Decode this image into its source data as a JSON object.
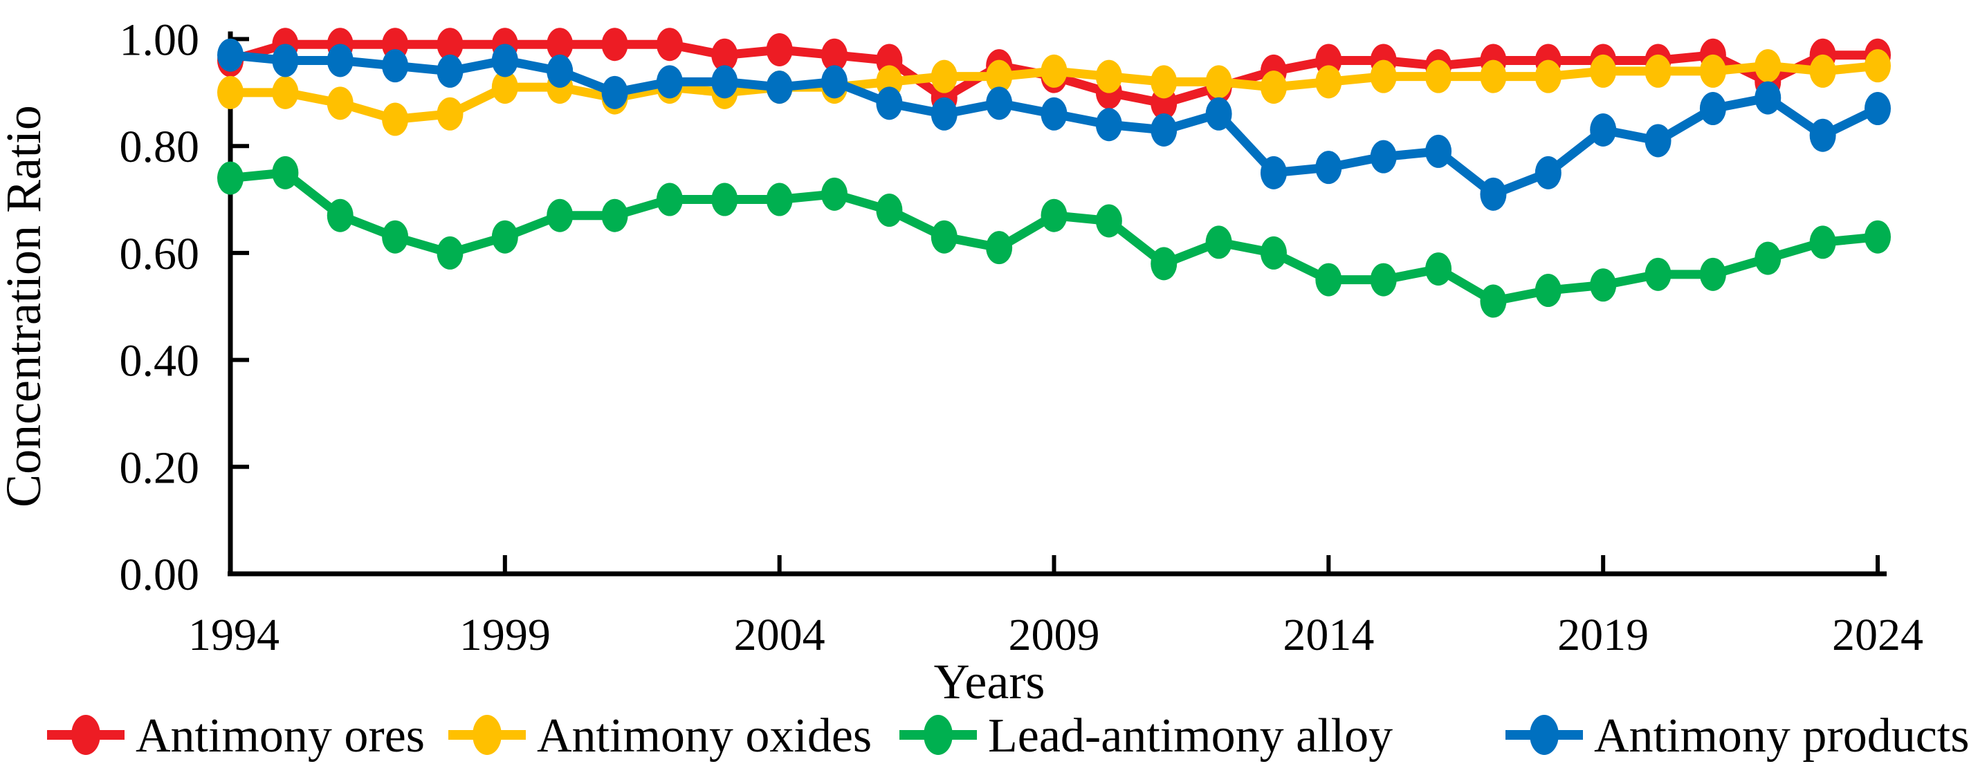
{
  "chart_data": {
    "type": "line",
    "title": "",
    "xlabel": "Years",
    "ylabel": "Concentration Ratio",
    "grid": false,
    "legend_position": "bottom",
    "ylim": [
      0.0,
      1.0
    ],
    "y_ticks": [
      {
        "label": "1.00",
        "value": 1.0
      },
      {
        "label": "0.80",
        "value": 0.8
      },
      {
        "label": "0.60",
        "value": 0.6
      },
      {
        "label": "0.40",
        "value": 0.4
      },
      {
        "label": "0.20",
        "value": 0.2
      },
      {
        "label": "0.00",
        "value": 0.0
      }
    ],
    "x_ticks": [
      1994,
      1999,
      2004,
      2009,
      2014,
      2019,
      2024
    ],
    "x": [
      1994,
      1995,
      1996,
      1997,
      1998,
      1999,
      2000,
      2001,
      2002,
      2003,
      2004,
      2005,
      2006,
      2007,
      2008,
      2009,
      2010,
      2011,
      2012,
      2013,
      2014,
      2015,
      2016,
      2017,
      2018,
      2019,
      2020,
      2021,
      2022,
      2023,
      2024
    ],
    "series": [
      {
        "name": "Antimony ores",
        "color": "#ED1C24",
        "values": [
          0.96,
          0.99,
          0.99,
          0.99,
          0.99,
          0.99,
          0.99,
          0.99,
          0.99,
          0.97,
          0.98,
          0.97,
          0.96,
          0.89,
          0.95,
          0.93,
          0.9,
          0.88,
          0.91,
          0.94,
          0.96,
          0.96,
          0.95,
          0.96,
          0.96,
          0.96,
          0.96,
          0.97,
          0.92,
          0.97,
          0.97
        ]
      },
      {
        "name": "Antimony oxides",
        "color": "#FFC000",
        "values": [
          0.9,
          0.9,
          0.88,
          0.85,
          0.86,
          0.91,
          0.91,
          0.89,
          0.91,
          0.9,
          0.91,
          0.91,
          0.92,
          0.93,
          0.93,
          0.94,
          0.93,
          0.92,
          0.92,
          0.91,
          0.92,
          0.93,
          0.93,
          0.93,
          0.93,
          0.94,
          0.94,
          0.94,
          0.95,
          0.94,
          0.95
        ]
      },
      {
        "name": "Lead-antimony alloy",
        "color": "#00B050",
        "values": [
          0.74,
          0.75,
          0.67,
          0.63,
          0.6,
          0.63,
          0.67,
          0.67,
          0.7,
          0.7,
          0.7,
          0.71,
          0.68,
          0.63,
          0.61,
          0.67,
          0.66,
          0.58,
          0.62,
          0.6,
          0.55,
          0.55,
          0.57,
          0.51,
          0.53,
          0.54,
          0.56,
          0.56,
          0.59,
          0.62,
          0.63
        ]
      },
      {
        "name": "Antimony products",
        "color": "#0070C0",
        "values": [
          0.97,
          0.96,
          0.96,
          0.95,
          0.94,
          0.96,
          0.94,
          0.9,
          0.92,
          0.92,
          0.91,
          0.92,
          0.88,
          0.86,
          0.88,
          0.86,
          0.84,
          0.83,
          0.86,
          0.75,
          0.76,
          0.78,
          0.79,
          0.71,
          0.75,
          0.83,
          0.81,
          0.87,
          0.89,
          0.82,
          0.87
        ]
      }
    ]
  }
}
